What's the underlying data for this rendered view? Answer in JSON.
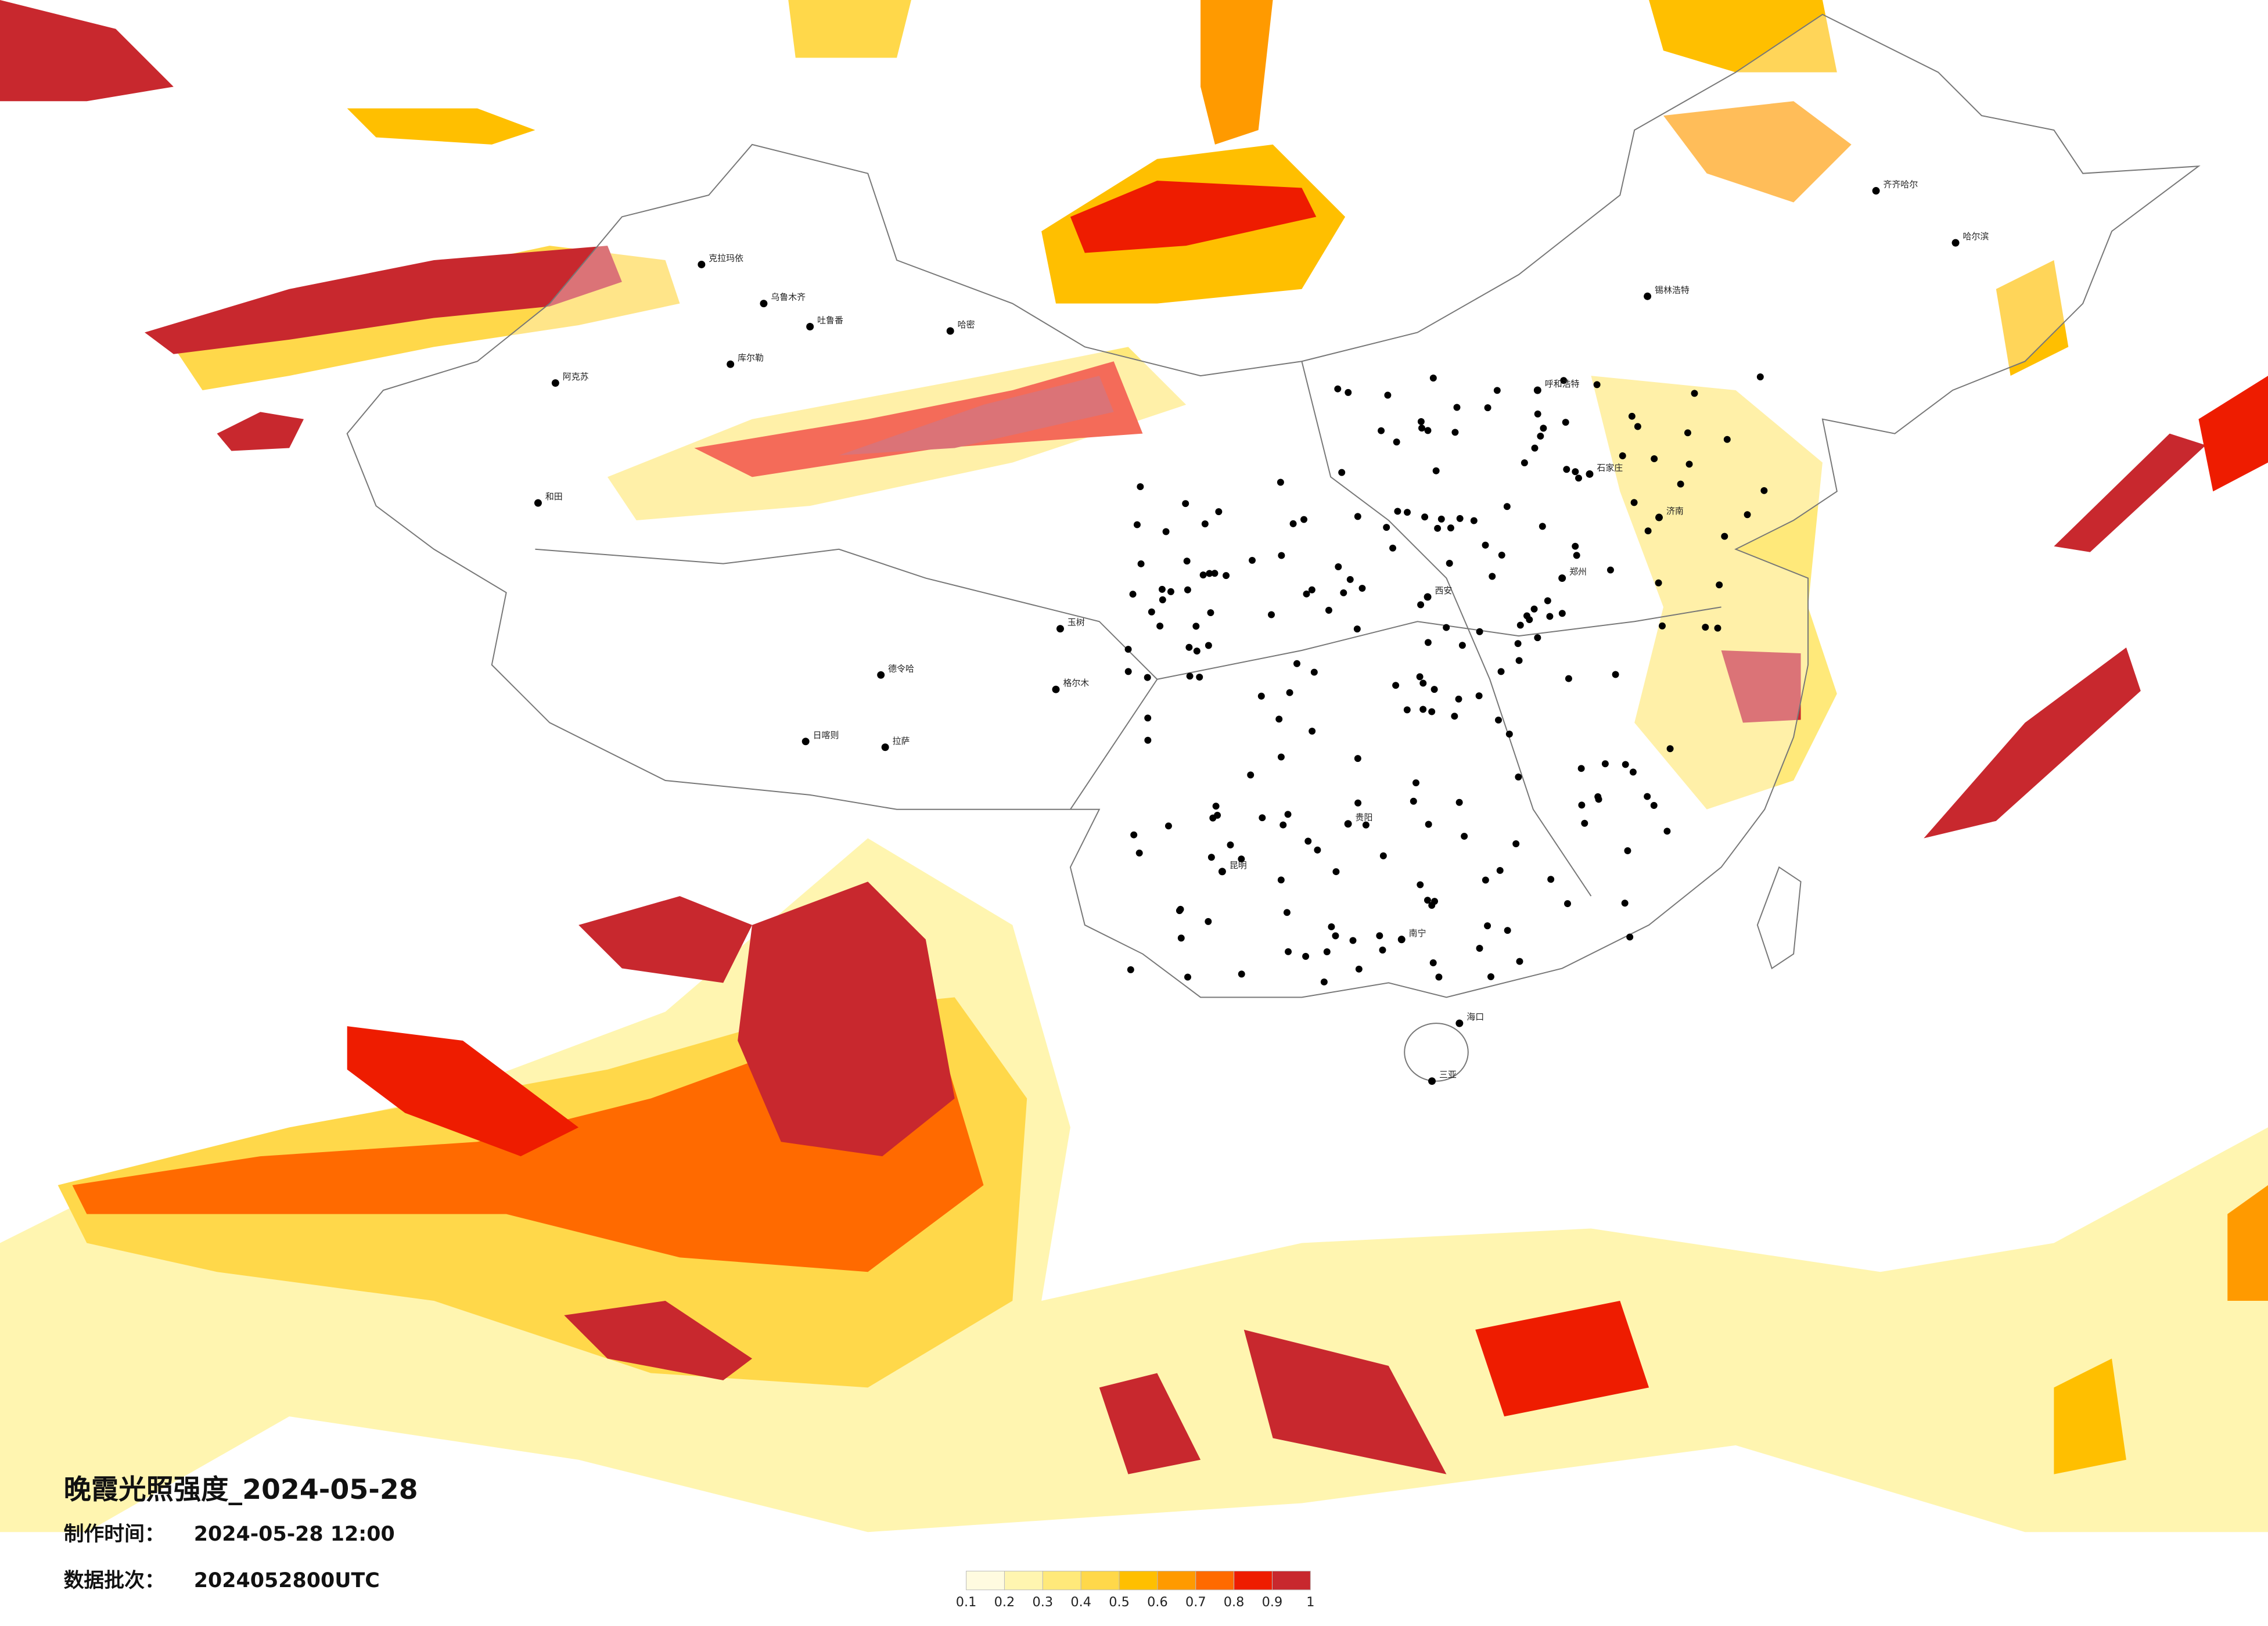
{
  "title": "晚霞光照强度_2024-05-28",
  "info": [
    {
      "label": "制作时间：",
      "value": "2024-05-28 12:00"
    },
    {
      "label": "数据批次：",
      "value": "2024052800UTC"
    }
  ],
  "legend": {
    "ticks": [
      0.1,
      0.2,
      0.3,
      0.4,
      0.5,
      0.6,
      0.7,
      0.8,
      0.9,
      1
    ],
    "colors": [
      "#fffbe0",
      "#fff5b0",
      "#ffe97a",
      "#ffd84a",
      "#ffbf00",
      "#ff9a00",
      "#ff6a00",
      "#ee1c00",
      "#c8282e"
    ]
  },
  "cities": [
    "克拉玛依",
    "乌鲁木齐",
    "吐鲁番",
    "哈密",
    "库尔勒",
    "阿克苏",
    "和田",
    "格尔木",
    "玉树",
    "日喀则",
    "拉萨",
    "呼和浩特",
    "锡林浩特",
    "齐齐哈尔",
    "哈尔滨",
    "石家庄",
    "济南",
    "郑州",
    "西安",
    "昆明",
    "贵阳",
    "南宁",
    "海口",
    "三亚",
    "德令哈"
  ]
}
